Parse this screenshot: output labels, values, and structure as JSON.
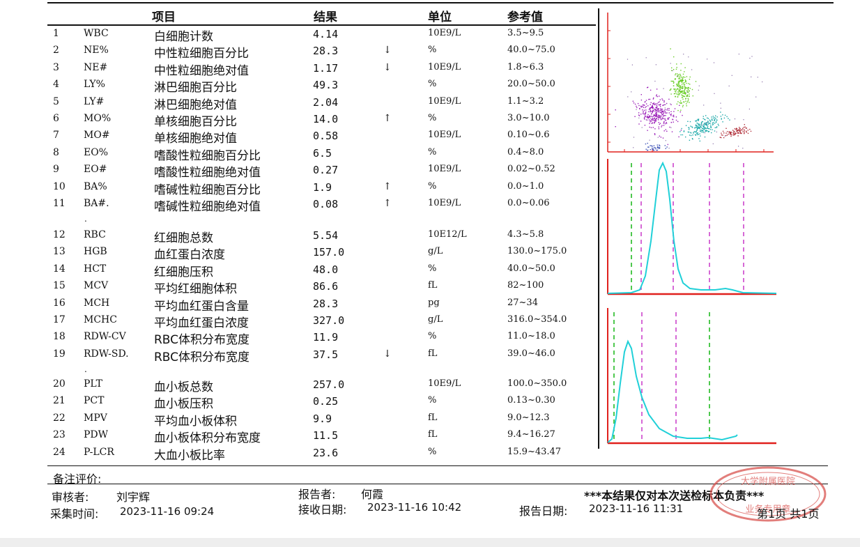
{
  "headers": {
    "item": "项目",
    "result": "结果",
    "unit": "单位",
    "reference": "参考值"
  },
  "rows": [
    {
      "no": "1",
      "code": "WBC",
      "name": "白细胞计数",
      "value": "4.14",
      "flag": "",
      "unit": "10E9/L",
      "ref": "3.5~9.5"
    },
    {
      "no": "2",
      "code": "NE%",
      "name": "中性粒细胞百分比",
      "value": "28.3",
      "flag": "↓",
      "unit": "%",
      "ref": "40.0~75.0"
    },
    {
      "no": "3",
      "code": "NE#",
      "name": "中性粒细胞绝对值",
      "value": "1.17",
      "flag": "↓",
      "unit": "10E9/L",
      "ref": "1.8~6.3"
    },
    {
      "no": "4",
      "code": "LY%",
      "name": "淋巴细胞百分比",
      "value": "49.3",
      "flag": "",
      "unit": "%",
      "ref": "20.0~50.0"
    },
    {
      "no": "5",
      "code": "LY#",
      "name": "淋巴细胞绝对值",
      "value": "2.04",
      "flag": "",
      "unit": "10E9/L",
      "ref": "1.1~3.2"
    },
    {
      "no": "6",
      "code": "MO%",
      "name": "单核细胞百分比",
      "value": "14.0",
      "flag": "↑",
      "unit": "%",
      "ref": "3.0~10.0"
    },
    {
      "no": "7",
      "code": "MO#",
      "name": "单核细胞绝对值",
      "value": "0.58",
      "flag": "",
      "unit": "10E9/L",
      "ref": "0.10~0.6"
    },
    {
      "no": "8",
      "code": "EO%",
      "name": "嗜酸性粒细胞百分比",
      "value": "6.5",
      "flag": "",
      "unit": "%",
      "ref": "0.4~8.0"
    },
    {
      "no": "9",
      "code": "EO#",
      "name": "嗜酸性粒细胞绝对值",
      "value": "0.27",
      "flag": "",
      "unit": "10E9/L",
      "ref": "0.02~0.52"
    },
    {
      "no": "10",
      "code": "BA%",
      "name": "嗜碱性粒细胞百分比",
      "value": "1.9",
      "flag": "↑",
      "unit": "%",
      "ref": "0.0~1.0"
    },
    {
      "no": "11",
      "code": "BA#.",
      "name": "嗜碱性粒细胞绝对值",
      "value": "0.08",
      "flag": "↑",
      "unit": "10E9/L",
      "ref": "0.0~0.06"
    },
    {
      "no": "12",
      "code": "RBC",
      "name": "红细胞总数",
      "value": "5.54",
      "flag": "",
      "unit": "10E12/L",
      "ref": "4.3~5.8"
    },
    {
      "no": "13",
      "code": "HGB",
      "name": "血红蛋白浓度",
      "value": "157.0",
      "flag": "",
      "unit": "g/L",
      "ref": "130.0~175.0"
    },
    {
      "no": "14",
      "code": "HCT",
      "name": "红细胞压积",
      "value": "48.0",
      "flag": "",
      "unit": "%",
      "ref": "40.0~50.0"
    },
    {
      "no": "15",
      "code": "MCV",
      "name": "平均红细胞体积",
      "value": "86.6",
      "flag": "",
      "unit": "fL",
      "ref": "82~100"
    },
    {
      "no": "16",
      "code": "MCH",
      "name": "平均血红蛋白含量",
      "value": "28.3",
      "flag": "",
      "unit": "pg",
      "ref": "27~34"
    },
    {
      "no": "17",
      "code": "MCHC",
      "name": "平均血红蛋白浓度",
      "value": "327.0",
      "flag": "",
      "unit": "g/L",
      "ref": "316.0~354.0"
    },
    {
      "no": "18",
      "code": "RDW-CV",
      "name": "RBC体积分布宽度",
      "value": "11.9",
      "flag": "",
      "unit": "%",
      "ref": "11.0~18.0"
    },
    {
      "no": "19",
      "code": "RDW-SD.",
      "name": "RBC体积分布宽度",
      "value": "37.5",
      "flag": "↓",
      "unit": "fL",
      "ref": "39.0~46.0"
    },
    {
      "no": "20",
      "code": "PLT",
      "name": "血小板总数",
      "value": "257.0",
      "flag": "",
      "unit": "10E9/L",
      "ref": "100.0~350.0"
    },
    {
      "no": "21",
      "code": "PCT",
      "name": "血小板压积",
      "value": "0.25",
      "flag": "",
      "unit": "%",
      "ref": "0.13~0.30"
    },
    {
      "no": "22",
      "code": "MPV",
      "name": "平均血小板体积",
      "value": "9.9",
      "flag": "",
      "unit": "fL",
      "ref": "9.0~12.3"
    },
    {
      "no": "23",
      "code": "PDW",
      "name": "血小板体积分布宽度",
      "value": "11.5",
      "flag": "",
      "unit": "fL",
      "ref": "9.4~16.27"
    },
    {
      "no": "24",
      "code": "P-LCR",
      "name": "大血小板比率",
      "value": "23.6",
      "flag": "",
      "unit": "%",
      "ref": "15.9~43.47"
    }
  ],
  "group_separator": ".",
  "footer": {
    "remarks_label": "备注评价:",
    "reviewer_label": "审核者:",
    "reviewer": "刘宇辉",
    "reporter_label": "报告者:",
    "reporter": "何霞",
    "collect_label": "采集时间:",
    "collect_time": "2023-11-16 09:24",
    "receive_label": "接收日期:",
    "receive_time": "2023-11-16 10:42",
    "report_label": "报告日期:",
    "report_time": "2023-11-16 11:31",
    "disclaimer": "***本结果仅对本次送检标本负责***",
    "page_info": "第1页 共1页"
  },
  "stamp": {
    "top_text": "大学附属医院",
    "bottom_text": "业务专用章",
    "color": "#d9534f"
  },
  "graph_colors": {
    "axis": "#e0201c",
    "curve": "#20d0d8",
    "green_marker": "#22bb22",
    "magenta_marker": "#cc44cc",
    "scatter_purple": "#9b1fb8",
    "scatter_green": "#66cc22",
    "scatter_teal": "#1aa8a8",
    "scatter_red": "#b0303a",
    "scatter_blue": "#3a4fb5"
  }
}
